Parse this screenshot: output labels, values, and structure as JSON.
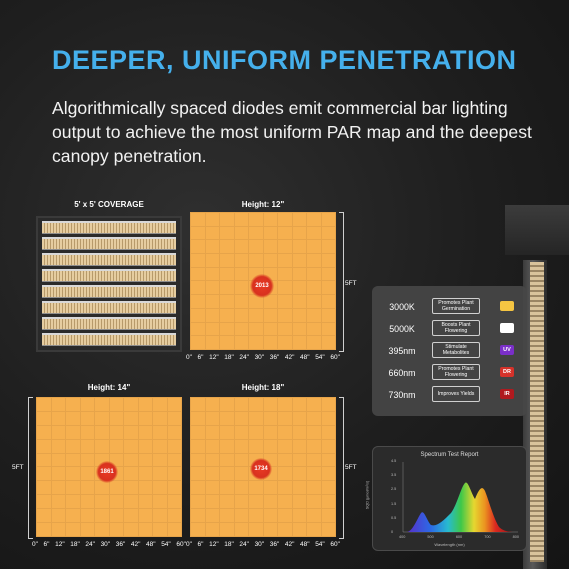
{
  "headline": "DEEPER, UNIFORM PENETRATION",
  "description": "Algorithmically spaced diodes emit commercial bar lighting output to achieve the most uniform PAR map and the deepest canopy penetration.",
  "coverage_label": "5' x 5' COVERAGE",
  "size_label": "5FT",
  "x_ticks": [
    "0\"",
    "6\"",
    "12\"",
    "18\"",
    "24\"",
    "30\"",
    "36\"",
    "42\"",
    "48\"",
    "54\"",
    "60\""
  ],
  "par_maps": [
    {
      "label": "Height: 12\"",
      "peak": "2013"
    },
    {
      "label": "Height: 14\"",
      "peak": "1861"
    },
    {
      "label": "Height: 18\"",
      "peak": "1734"
    }
  ],
  "spectrum": [
    {
      "name": "3000K",
      "role": "Promotes Plant Germination",
      "indicator": "",
      "color": "#f5c542"
    },
    {
      "name": "5000K",
      "role": "Boosts Plant Flowering",
      "indicator": "",
      "color": "#ffffff"
    },
    {
      "name": "395nm",
      "role": "Stimulate Metabolites",
      "indicator": "UV",
      "color": "#7a2fc9"
    },
    {
      "name": "660nm",
      "role": "Promotes Plant Flowering",
      "indicator": "DR",
      "color": "#d5322a"
    },
    {
      "name": "730nm",
      "role": "Improves Yields",
      "indicator": "IR",
      "color": "#b0191e"
    }
  ],
  "spectrum_report": {
    "title": "Spectrum Test Report",
    "xlabel": "Wavelength (nm)",
    "ylabel": "SQD (μmol/m²/s)",
    "y_ticks": [
      "4.5",
      "3.5",
      "2.5",
      "1.5",
      "0.5",
      "0"
    ],
    "x_ticks": [
      "400",
      "500",
      "600",
      "700",
      "800"
    ]
  },
  "colors": {
    "accent": "#45b0ec",
    "par_cell": "#f6b04f",
    "hotspot": "#e93a24"
  }
}
